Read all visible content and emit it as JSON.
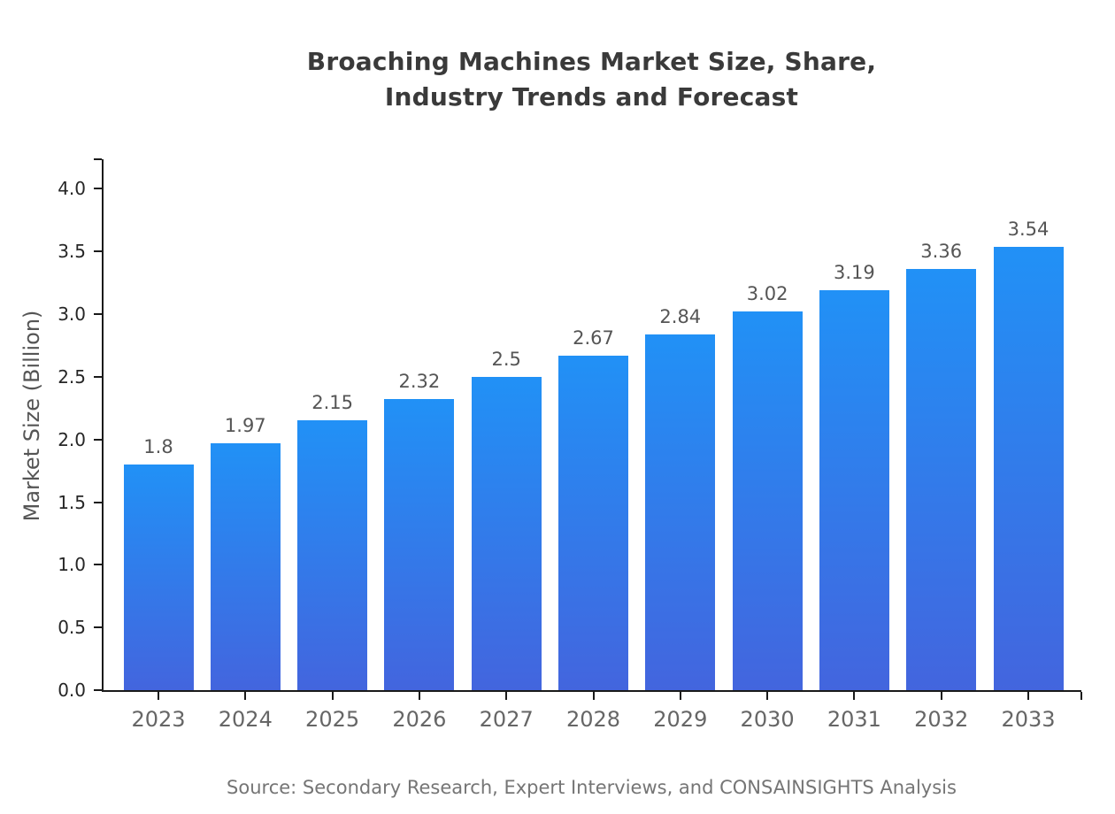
{
  "header": {
    "title": "Broaching Machines Market Size, Share,\nIndustry Trends and Forecast"
  },
  "footer": {
    "source": "Source: Secondary Research, Expert Interviews, and CONSAINSIGHTS Analysis"
  },
  "chart_data": {
    "type": "bar",
    "title": "Broaching Machines Market Size, Share, Industry Trends and Forecast",
    "categories": [
      "2023",
      "2024",
      "2025",
      "2026",
      "2027",
      "2028",
      "2029",
      "2030",
      "2031",
      "2032",
      "2033"
    ],
    "values": [
      1.8,
      1.97,
      2.15,
      2.32,
      2.5,
      2.67,
      2.84,
      3.02,
      3.19,
      3.36,
      3.54
    ],
    "value_labels": [
      "1.8",
      "1.97",
      "2.15",
      "2.32",
      "2.5",
      "2.67",
      "2.84",
      "3.02",
      "3.19",
      "3.36",
      "3.54"
    ],
    "xlabel": "",
    "ylabel": "Market Size (Billion)",
    "ylim": [
      0,
      4.25
    ],
    "yticks": [
      0.0,
      0.5,
      1.0,
      1.5,
      2.0,
      2.5,
      3.0,
      3.5,
      4.0
    ],
    "ytick_labels": [
      "0.0",
      "0.5",
      "1.0",
      "1.5",
      "2.0",
      "2.5",
      "3.0",
      "3.5",
      "4.0"
    ],
    "grid": false,
    "legend": false,
    "colors": {
      "bar_gradient_top": "#2191F6",
      "bar_gradient_bottom": "#4365DE",
      "axis": "#1a1a1a",
      "title_text": "#3a3a3a",
      "xtick_text": "#666666",
      "ytick_text": "#262626",
      "value_text": "#555555",
      "source_text": "#757575"
    }
  }
}
